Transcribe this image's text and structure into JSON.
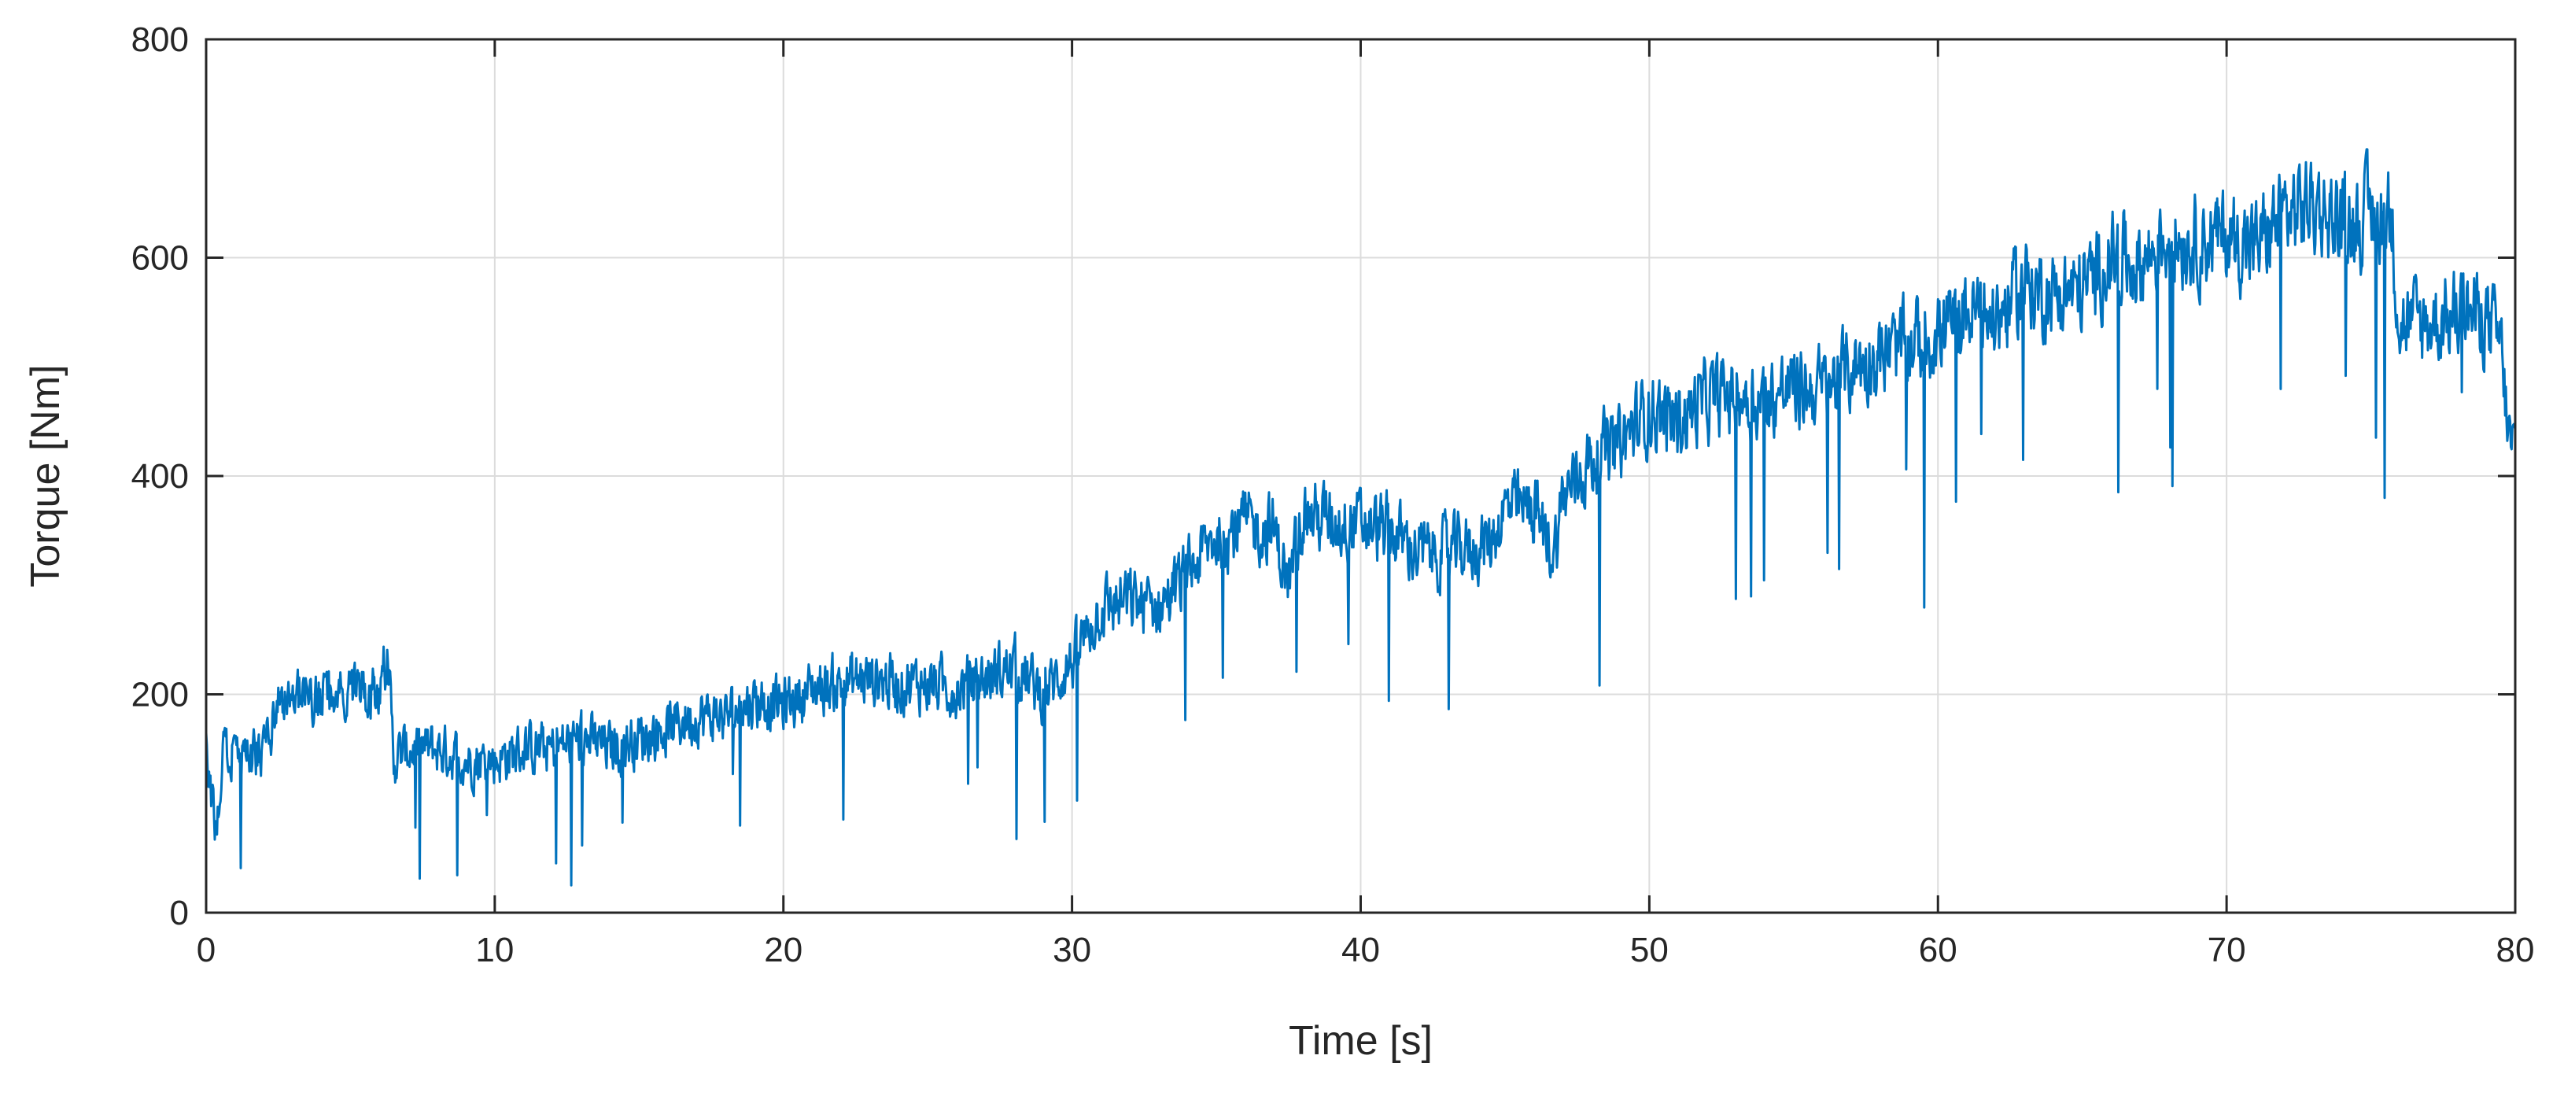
{
  "chart_data": {
    "type": "line",
    "title": "",
    "xlabel": "Time [s]",
    "ylabel": "Torque [Nm]",
    "xlim": [
      0,
      80
    ],
    "ylim": [
      0,
      800
    ],
    "xticks": [
      0,
      10,
      20,
      30,
      40,
      50,
      60,
      70,
      80
    ],
    "yticks": [
      0,
      200,
      400,
      600,
      800
    ],
    "grid": true,
    "line_color": "#0072BD",
    "series": [
      {
        "name": "Torque",
        "x": [
          0,
          0.3,
          0.6,
          1,
          1.5,
          2,
          2.5,
          3,
          4,
          5,
          6,
          6.3,
          6.5,
          7,
          8,
          9,
          10,
          11,
          12,
          13,
          14,
          15,
          16,
          17,
          18,
          19,
          20,
          21,
          22,
          23,
          24,
          25,
          26,
          27,
          28,
          29,
          30,
          31,
          32,
          33,
          34,
          35,
          36,
          37,
          37.5,
          38,
          39,
          40,
          41,
          42,
          43,
          44,
          44.5,
          45,
          46,
          46.7,
          47,
          48,
          49,
          50,
          51,
          52,
          53,
          54,
          55,
          56,
          57,
          58,
          59,
          60,
          61,
          62,
          63,
          64,
          65,
          66,
          67,
          68,
          69,
          70,
          71,
          72,
          73,
          74,
          75,
          75.7,
          76,
          77,
          78,
          79,
          79.5,
          79.8,
          80
        ],
        "y": [
          150,
          80,
          140,
          150,
          140,
          145,
          200,
          200,
          195,
          200,
          210,
          235,
          140,
          150,
          150,
          140,
          140,
          150,
          150,
          160,
          150,
          160,
          170,
          180,
          180,
          195,
          190,
          205,
          210,
          215,
          210,
          210,
          205,
          215,
          225,
          200,
          230,
          280,
          285,
          280,
          310,
          345,
          355,
          350,
          300,
          365,
          360,
          355,
          350,
          330,
          330,
          335,
          340,
          370,
          370,
          330,
          380,
          415,
          430,
          460,
          450,
          470,
          475,
          470,
          480,
          480,
          500,
          510,
          520,
          530,
          550,
          545,
          575,
          565,
          570,
          600,
          595,
          620,
          615,
          620,
          610,
          640,
          650,
          630,
          640,
          640,
          540,
          540,
          550,
          545,
          520,
          430,
          420
        ]
      }
    ]
  }
}
